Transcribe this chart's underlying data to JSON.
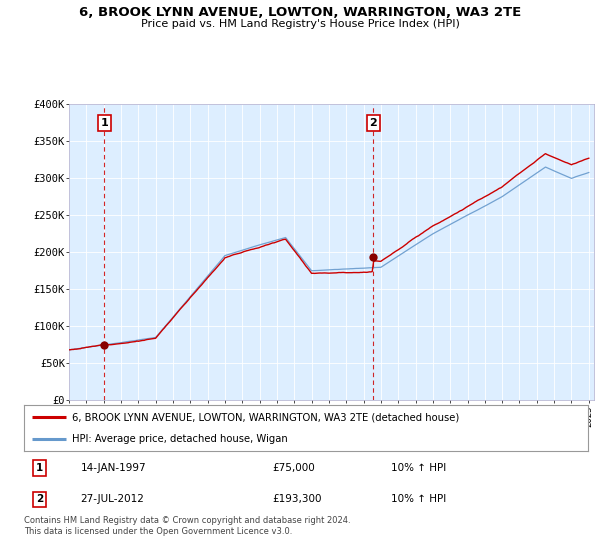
{
  "title": "6, BROOK LYNN AVENUE, LOWTON, WARRINGTON, WA3 2TE",
  "subtitle": "Price paid vs. HM Land Registry's House Price Index (HPI)",
  "ylim": [
    0,
    400000
  ],
  "yticks": [
    0,
    50000,
    100000,
    150000,
    200000,
    250000,
    300000,
    350000,
    400000
  ],
  "ytick_labels": [
    "£0",
    "£50K",
    "£100K",
    "£150K",
    "£200K",
    "£250K",
    "£300K",
    "£350K",
    "£400K"
  ],
  "bg_color": "#ddeeff",
  "red_line_color": "#cc0000",
  "blue_line_color": "#6699cc",
  "dashed_line_color": "#cc0000",
  "transaction1_year": 1997.04,
  "transaction1_value": 75000,
  "transaction2_year": 2012.57,
  "transaction2_value": 193300,
  "legend_line1": "6, BROOK LYNN AVENUE, LOWTON, WARRINGTON, WA3 2TE (detached house)",
  "legend_line2": "HPI: Average price, detached house, Wigan",
  "table_row1": [
    "1",
    "14-JAN-1997",
    "£75,000",
    "10% ↑ HPI"
  ],
  "table_row2": [
    "2",
    "27-JUL-2012",
    "£193,300",
    "10% ↑ HPI"
  ],
  "footer": "Contains HM Land Registry data © Crown copyright and database right 2024.\nThis data is licensed under the Open Government Licence v3.0."
}
